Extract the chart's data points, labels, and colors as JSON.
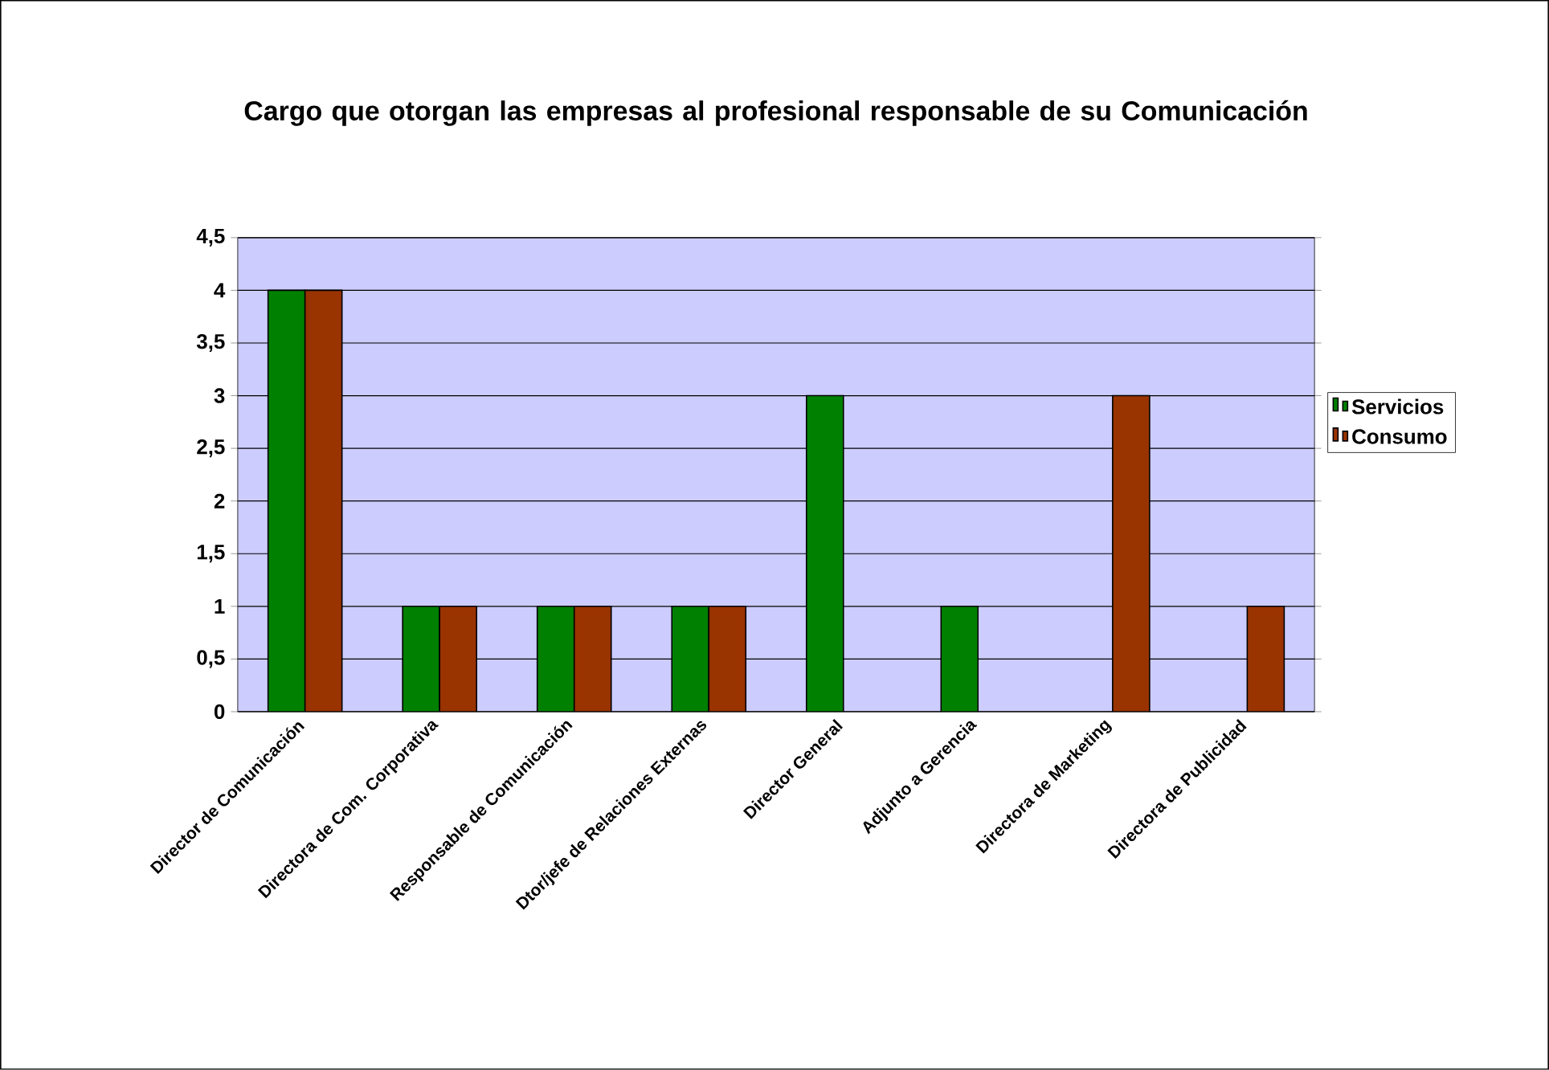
{
  "chart_data": {
    "type": "bar",
    "title": "Cargo que otorgan las empresas al profesional responsable de su Comunicación",
    "categories": [
      "Director de Comunicación",
      "Directora de Com. Corporativa",
      "Responsable de Comunicación",
      "Dtor/jefe de Relaciones Externas",
      "Director General",
      "Adjunto a Gerencia",
      "Directora de Marketing",
      "Directora de Publicidad"
    ],
    "series": [
      {
        "name": "Servicios",
        "color": "#008000",
        "values": [
          4,
          1,
          1,
          1,
          3,
          1,
          null,
          null
        ]
      },
      {
        "name": "Consumo",
        "color": "#993300",
        "values": [
          4,
          1,
          1,
          1,
          null,
          null,
          3,
          1
        ]
      }
    ],
    "ylim": [
      0,
      4.5
    ],
    "yticks": [
      0,
      {
        "value": 0.5,
        "label": "0,5"
      },
      1,
      {
        "value": 1.5,
        "label": "1,5"
      },
      2,
      {
        "value": 2.5,
        "label": "2,5"
      },
      3,
      {
        "value": 3.5,
        "label": "3,5"
      },
      4,
      {
        "value": 4.5,
        "label": "4,5"
      }
    ],
    "grid": "y",
    "legend": "right"
  }
}
